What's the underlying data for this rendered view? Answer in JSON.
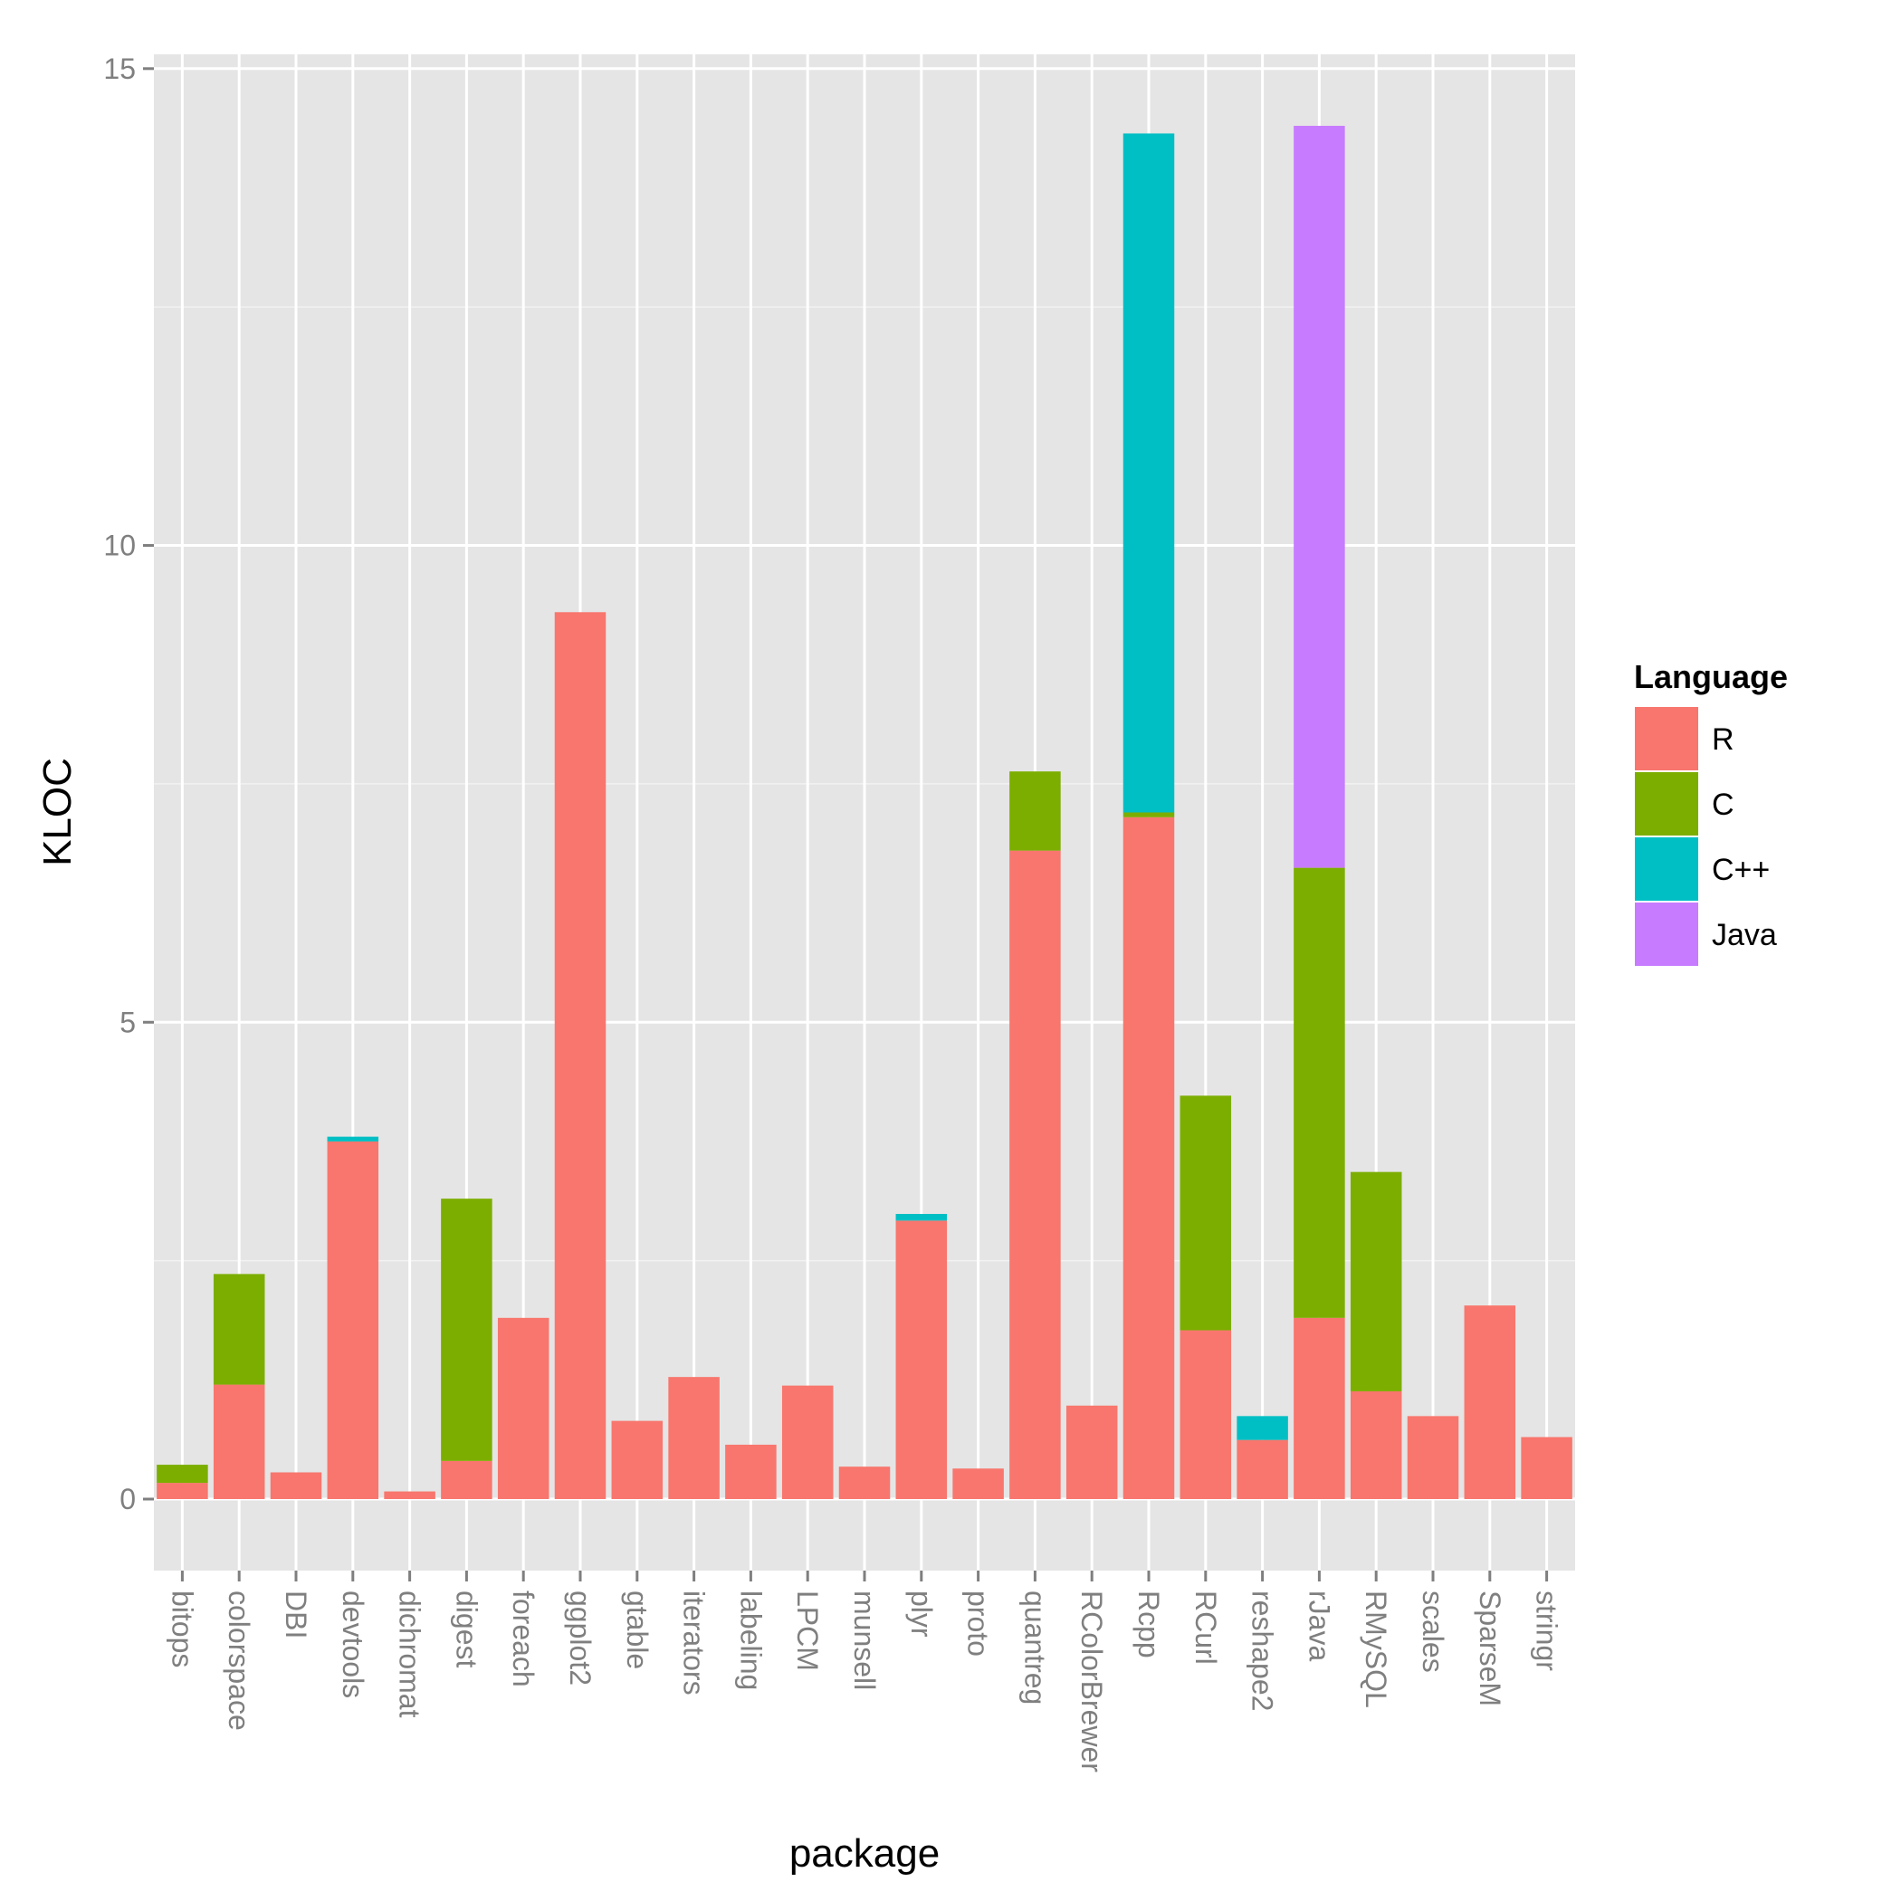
{
  "chart_data": {
    "type": "bar",
    "stacked": true,
    "xlabel": "package",
    "ylabel": "KLOC",
    "ylim": [
      -0.75,
      15.15
    ],
    "yticks": [
      0,
      5,
      10,
      15
    ],
    "grid": true,
    "legend_title": "Language",
    "legend_position": "right",
    "categories": [
      "bitops",
      "colorspace",
      "DBI",
      "devtools",
      "dichromat",
      "digest",
      "foreach",
      "ggplot2",
      "gtable",
      "iterators",
      "labeling",
      "LPCM",
      "munsell",
      "plyr",
      "proto",
      "quantreg",
      "RColorBrewer",
      "Rcpp",
      "RCurl",
      "reshape2",
      "rJava",
      "RMySQL",
      "scales",
      "SparseM",
      "stringr"
    ],
    "series": [
      {
        "name": "R",
        "color": "#F8766D",
        "values": [
          0.17,
          1.2,
          0.28,
          3.75,
          0.08,
          0.4,
          1.9,
          9.3,
          0.82,
          1.28,
          0.57,
          1.19,
          0.34,
          2.92,
          0.32,
          6.8,
          0.98,
          7.15,
          1.77,
          0.62,
          1.9,
          1.13,
          0.87,
          2.03,
          0.65
        ]
      },
      {
        "name": "C",
        "color": "#7CAE00",
        "values": [
          0.19,
          1.16,
          0,
          0,
          0,
          2.75,
          0,
          0,
          0,
          0,
          0,
          0,
          0,
          0,
          0,
          0.83,
          0,
          0.05,
          2.46,
          0,
          4.72,
          2.3,
          0,
          0,
          0
        ]
      },
      {
        "name": "C++",
        "color": "#00BFC4",
        "values": [
          0,
          0,
          0,
          0.05,
          0,
          0,
          0,
          0,
          0,
          0,
          0,
          0,
          0,
          0.07,
          0,
          0,
          0,
          7.12,
          0,
          0.25,
          0,
          0,
          0,
          0,
          0
        ]
      },
      {
        "name": "Java",
        "color": "#C77CFF",
        "values": [
          0,
          0,
          0,
          0,
          0,
          0,
          0,
          0,
          0,
          0,
          0,
          0,
          0,
          0,
          0,
          0,
          0,
          0,
          0,
          0,
          7.78,
          0,
          0,
          0,
          0
        ]
      }
    ]
  }
}
